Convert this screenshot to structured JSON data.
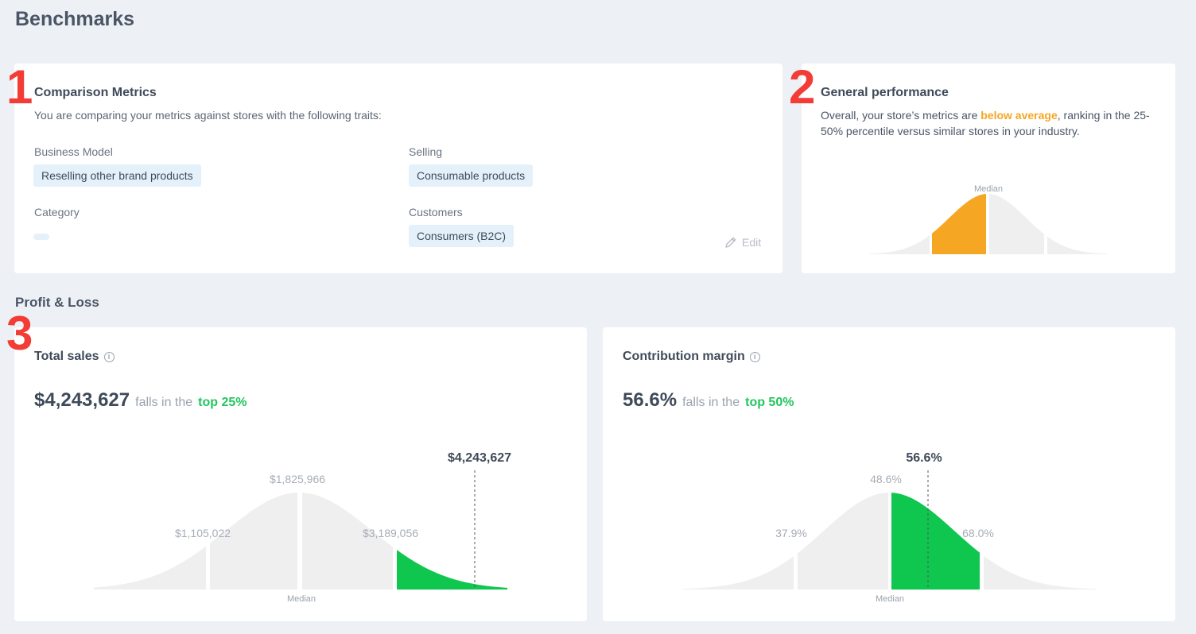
{
  "page": {
    "title": "Benchmarks"
  },
  "markers": {
    "one": "1",
    "two": "2",
    "three": "3"
  },
  "comparison": {
    "title": "Comparison Metrics",
    "subtitle": "You are comparing your metrics against stores with the following traits:",
    "business_model": {
      "label": "Business Model",
      "value": "Reselling other brand products"
    },
    "selling": {
      "label": "Selling",
      "value": "Consumable products"
    },
    "category": {
      "label": "Category",
      "value": ""
    },
    "customers": {
      "label": "Customers",
      "value": "Consumers (B2C)"
    },
    "edit_label": "Edit"
  },
  "general": {
    "title": "General performance",
    "text_pre": "Overall, your store’s metrics are ",
    "highlight": "below average",
    "text_post": ", ranking in the 25-50% percentile versus similar stores in your industry.",
    "median_label": "Median",
    "highlight_color": "#f5a623"
  },
  "pnl": {
    "title": "Profit & Loss"
  },
  "total_sales": {
    "title": "Total sales",
    "value": "$4,243,627",
    "falls_text": "falls in the",
    "rank": "top 25%",
    "marker_label": "$4,243,627",
    "labels": {
      "p25": "$1,105,022",
      "median": "$1,825,966",
      "p75": "$3,189,056"
    },
    "median_label": "Median",
    "highlight_color": "#0fc64e"
  },
  "contribution": {
    "title": "Contribution margin",
    "value": "56.6%",
    "falls_text": "falls in the",
    "rank": "top 50%",
    "marker_label": "56.6%",
    "labels": {
      "p25": "37.9%",
      "median": "48.6%",
      "p75": "68.0%"
    },
    "median_label": "Median",
    "highlight_color": "#0fc64e"
  },
  "icons": {
    "info": "info-icon",
    "edit": "pencil-icon"
  }
}
